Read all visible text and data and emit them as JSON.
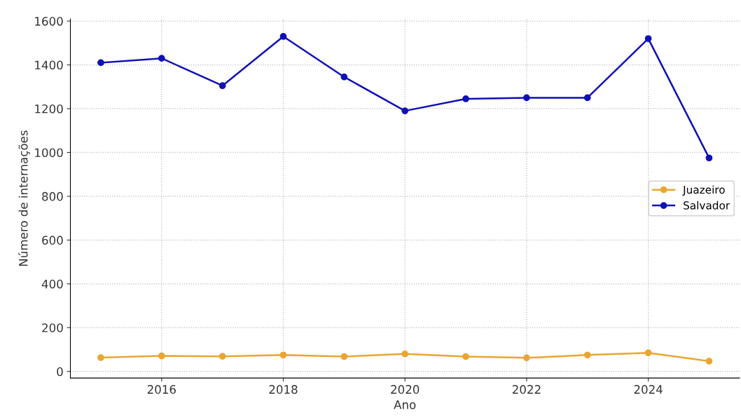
{
  "chart_data": {
    "type": "line",
    "xlabel": "Ano",
    "ylabel": "Número de internações",
    "x": [
      2015,
      2016,
      2017,
      2018,
      2019,
      2020,
      2021,
      2022,
      2023,
      2024,
      2025
    ],
    "series": [
      {
        "name": "Juazeiro",
        "color": "#eaa62e",
        "values": [
          63,
          71,
          69,
          75,
          68,
          80,
          68,
          62,
          75,
          85,
          47
        ]
      },
      {
        "name": "Salvador",
        "color": "#1010b8",
        "values": [
          1410,
          1430,
          1305,
          1530,
          1345,
          1190,
          1245,
          1250,
          1250,
          1520,
          975
        ]
      }
    ],
    "xlim": [
      2014.5,
      2025.5
    ],
    "xticks": [
      2016,
      2018,
      2020,
      2022,
      2024
    ],
    "ylim": [
      -30,
      1610
    ],
    "yticks": [
      0,
      200,
      400,
      600,
      800,
      1000,
      1200,
      1400,
      1600
    ],
    "grid": true,
    "legend": "center right",
    "marker": "circle",
    "line_style": "solid"
  }
}
